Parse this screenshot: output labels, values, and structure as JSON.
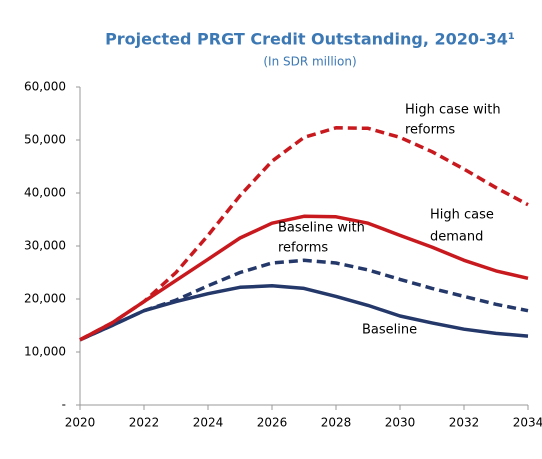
{
  "chart_data": {
    "type": "line",
    "title": "Projected PRGT Credit Outstanding, 2020-34¹",
    "subtitle": "(In SDR million)",
    "x": [
      2020,
      2021,
      2022,
      2023,
      2024,
      2025,
      2026,
      2027,
      2028,
      2029,
      2030,
      2031,
      2032,
      2033,
      2034
    ],
    "xlim": [
      2020,
      2034
    ],
    "xticks": [
      2020,
      2022,
      2024,
      2026,
      2028,
      2030,
      2032,
      2034
    ],
    "ylim": [
      0,
      60000
    ],
    "yticks": [
      {
        "value": 0,
        "label": "-"
      },
      {
        "value": 10000,
        "label": "10,000"
      },
      {
        "value": 20000,
        "label": "20,000"
      },
      {
        "value": 30000,
        "label": "30,000"
      },
      {
        "value": 40000,
        "label": "40,000"
      },
      {
        "value": 50000,
        "label": "50,000"
      },
      {
        "value": 60000,
        "label": "60,000"
      }
    ],
    "grid": false,
    "series": [
      {
        "name": "Baseline",
        "color": "#24386a",
        "dashed": false,
        "values": [
          12300,
          15000,
          17800,
          19500,
          21000,
          22200,
          22500,
          22000,
          20500,
          18800,
          16800,
          15500,
          14300,
          13500,
          13000
        ]
      },
      {
        "name": "Baseline with reforms",
        "color": "#24386a",
        "dashed": true,
        "values": [
          12300,
          15000,
          17800,
          19800,
          22500,
          25000,
          26800,
          27300,
          26800,
          25500,
          23700,
          22000,
          20500,
          19000,
          17800
        ]
      },
      {
        "name": "High case demand",
        "color": "#c8191e",
        "dashed": false,
        "values": [
          12300,
          15500,
          19500,
          23500,
          27500,
          31500,
          34300,
          35600,
          35500,
          34300,
          32000,
          29800,
          27300,
          25300,
          23900
        ]
      },
      {
        "name": "High case with reforms",
        "color": "#c8191e",
        "dashed": true,
        "values": [
          12300,
          15500,
          19500,
          25000,
          32000,
          39500,
          46000,
          50500,
          52300,
          52200,
          50500,
          47800,
          44500,
          41000,
          37800
        ]
      }
    ],
    "annotations": [
      "High case with",
      "reforms",
      "High case",
      "demand",
      "Baseline with",
      "reforms",
      "Baseline"
    ]
  }
}
